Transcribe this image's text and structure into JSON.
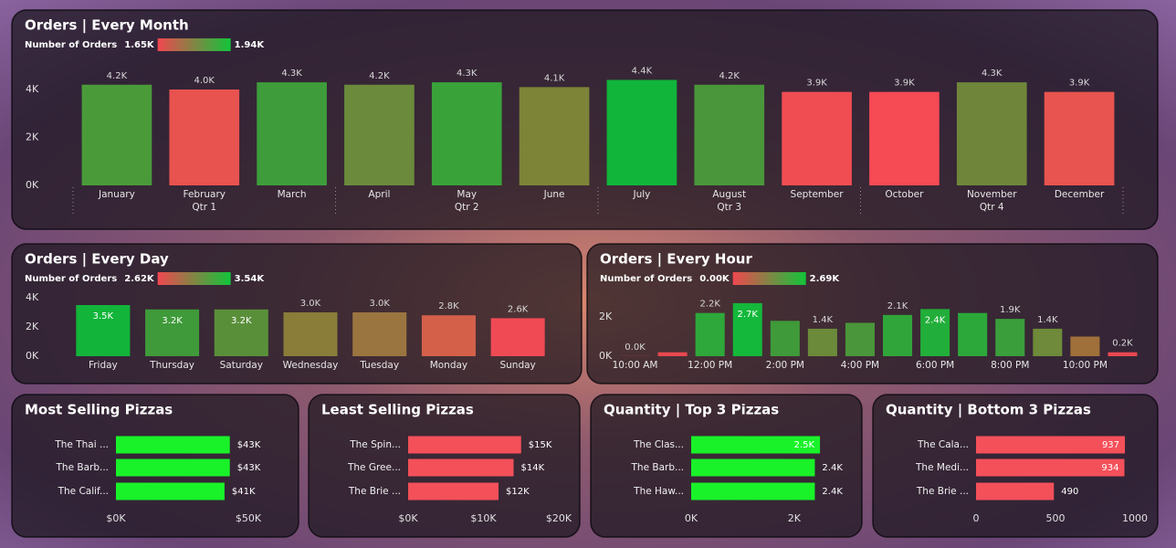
{
  "chart_data": [
    {
      "type": "bar",
      "title": "Orders | Every Month",
      "color_scale": {
        "label": "Number of Orders",
        "min": {
          "value": 1650,
          "label": "1.65K"
        },
        "max": {
          "value": 1940,
          "label": "1.94K"
        },
        "colors": [
          "#f0474f",
          "#12c43a"
        ]
      },
      "categories": [
        "January",
        "February",
        "March",
        "April",
        "May",
        "June",
        "July",
        "August",
        "September",
        "October",
        "November",
        "December"
      ],
      "groups": [
        "Qtr 1",
        "Qtr 2",
        "Qtr 3",
        "Qtr 4"
      ],
      "values": [
        4200,
        4000,
        4300,
        4200,
        4300,
        4100,
        4400,
        4200,
        3900,
        3900,
        4300,
        3900
      ],
      "value_labels": [
        "4.2K",
        "4.0K",
        "4.3K",
        "4.2K",
        "4.3K",
        "4.1K",
        "4.4K",
        "4.2K",
        "3.9K",
        "3.9K",
        "4.3K",
        "3.9K"
      ],
      "colors": [
        "#4a9a3a",
        "#e8524f",
        "#3e9c3b",
        "#6b8a3c",
        "#39a33a",
        "#7d8438",
        "#10b53a",
        "#4a963a",
        "#f04d52",
        "#f64a55",
        "#6f863a",
        "#e8544f"
      ],
      "ylim": [
        0,
        4800
      ],
      "yticks": [
        {
          "value": 0,
          "label": "0K"
        },
        {
          "value": 2000,
          "label": "2K"
        },
        {
          "value": 4000,
          "label": "4K"
        }
      ]
    },
    {
      "type": "bar",
      "title": "Orders | Every Day",
      "color_scale": {
        "label": "Number of Orders",
        "min": {
          "value": 2620,
          "label": "2.62K"
        },
        "max": {
          "value": 3540,
          "label": "3.54K"
        },
        "colors": [
          "#f0474f",
          "#12c43a"
        ]
      },
      "categories": [
        "Friday",
        "Thursday",
        "Saturday",
        "Wednesday",
        "Tuesday",
        "Monday",
        "Sunday"
      ],
      "values": [
        3500,
        3200,
        3200,
        3000,
        3000,
        2800,
        2600
      ],
      "value_labels": [
        "3.5K",
        "3.2K",
        "3.2K",
        "3.0K",
        "3.0K",
        "2.8K",
        "2.6K"
      ],
      "label_inside": [
        true,
        true,
        true,
        false,
        false,
        false,
        false
      ],
      "colors": [
        "#12b53a",
        "#3f9a3a",
        "#5a8f3a",
        "#8a7d3a",
        "#9a7540",
        "#d4604a",
        "#f04a55"
      ],
      "ylim": [
        0,
        4000
      ],
      "yticks": [
        {
          "value": 0,
          "label": "0K"
        },
        {
          "value": 2000,
          "label": "2K"
        },
        {
          "value": 4000,
          "label": "4K"
        }
      ]
    },
    {
      "type": "bar",
      "title": "Orders | Every Hour",
      "color_scale": {
        "label": "Number of Orders",
        "min": {
          "value": 0,
          "label": "0.00K"
        },
        "max": {
          "value": 2690,
          "label": "2.69K"
        },
        "colors": [
          "#f0474f",
          "#12c43a"
        ]
      },
      "categories": [
        "10:00 AM",
        null,
        "12:00 PM",
        null,
        "2:00 PM",
        null,
        "4:00 PM",
        null,
        "6:00 PM",
        null,
        "8:00 PM",
        null,
        "10:00 PM",
        null
      ],
      "values": [
        8,
        200,
        2200,
        2700,
        1800,
        1400,
        1700,
        2100,
        2400,
        2200,
        1900,
        1400,
        1000,
        200
      ],
      "value_labels": [
        "0.0K",
        null,
        "2.2K",
        "2.7K",
        null,
        "1.4K",
        null,
        "2.1K",
        "2.4K",
        null,
        "1.9K",
        "1.4K",
        null,
        "0.2K"
      ],
      "label_inside": [
        false,
        false,
        false,
        true,
        false,
        false,
        false,
        false,
        true,
        false,
        false,
        false,
        false,
        false
      ],
      "colors": [
        "#e04a4a",
        "#e8484f",
        "#2ea83a",
        "#14b83a",
        "#3f9a3a",
        "#6b8a3a",
        "#4a963a",
        "#30a63a",
        "#22ae3a",
        "#2ca83a",
        "#3a9e3a",
        "#6e8a3a",
        "#a0703a",
        "#e8484f"
      ],
      "ylim": [
        0,
        3000
      ],
      "yticks": [
        {
          "value": 0,
          "label": "0K"
        },
        {
          "value": 2000,
          "label": "2K"
        }
      ]
    },
    {
      "type": "hbar",
      "title": "Most Selling Pizzas",
      "categories": [
        "The Thai ...",
        "The Barb...",
        "The Calif..."
      ],
      "values": [
        43000,
        43000,
        41000
      ],
      "value_labels": [
        "$43K",
        "$43K",
        "$41K"
      ],
      "label_inside": [
        false,
        false,
        false
      ],
      "color": "#19f229",
      "xlim": [
        0,
        50000
      ],
      "xticks": [
        {
          "value": 0,
          "label": "$0K"
        },
        {
          "value": 50000,
          "label": "$50K"
        }
      ]
    },
    {
      "type": "hbar",
      "title": "Least Selling Pizzas",
      "categories": [
        "The Spin...",
        "The Gree...",
        "The Brie ..."
      ],
      "values": [
        15000,
        14000,
        12000
      ],
      "value_labels": [
        "$15K",
        "$14K",
        "$12K"
      ],
      "label_inside": [
        false,
        false,
        false
      ],
      "color": "#f4505a",
      "xlim": [
        0,
        20000
      ],
      "xticks": [
        {
          "value": 0,
          "label": "$0K"
        },
        {
          "value": 10000,
          "label": "$10K"
        },
        {
          "value": 20000,
          "label": "$20K"
        }
      ]
    },
    {
      "type": "hbar",
      "title": "Quantity | Top 3 Pizzas",
      "categories": [
        "The Clas...",
        "The Barb...",
        "The Haw..."
      ],
      "values": [
        2500,
        2400,
        2400
      ],
      "value_labels": [
        "2.5K",
        "2.4K",
        "2.4K"
      ],
      "label_inside": [
        true,
        false,
        false
      ],
      "color": "#19f229",
      "xlim": [
        0,
        2800
      ],
      "xticks": [
        {
          "value": 0,
          "label": "0K"
        },
        {
          "value": 2000,
          "label": "2K"
        }
      ]
    },
    {
      "type": "hbar",
      "title": "Quantity | Bottom 3 Pizzas",
      "categories": [
        "The Cala...",
        "The Medi...",
        "The Brie ..."
      ],
      "values": [
        937,
        934,
        490
      ],
      "label_inside": [
        true,
        true,
        false
      ],
      "color": "#f4505a",
      "xlim": [
        0,
        1000
      ],
      "xticks": [
        0,
        500,
        1000
      ]
    }
  ]
}
